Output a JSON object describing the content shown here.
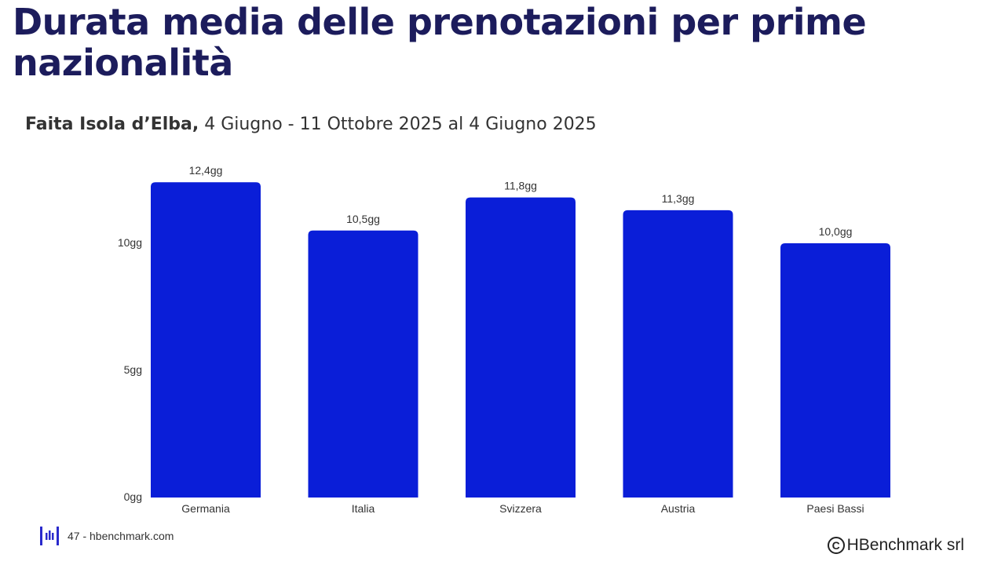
{
  "page": {
    "title": "Durata media delle prenotazioni per prime nazionalità",
    "subtitle_bold": "Faita Isola d’Elba,",
    "subtitle_rest": " 4 Giugno - 11 Ottobre 2025 al 4 Giugno 2025"
  },
  "footer": {
    "page_info": "47 - hbenchmark.com",
    "logo_icon": "hbenchmark-logo-icon",
    "copyright_symbol": "C",
    "copyright_text": "HBenchmark srl"
  },
  "colors": {
    "title": "#1c1c5c",
    "bar": "#0a1ed8",
    "brand": "#2a2acc"
  },
  "chart_data": {
    "type": "bar",
    "categories": [
      "Germania",
      "Italia",
      "Svizzera",
      "Austria",
      "Paesi Bassi"
    ],
    "values": [
      12.4,
      10.5,
      11.8,
      11.3,
      10.0
    ],
    "data_labels": [
      "12,4gg",
      "10,5gg",
      "11,8gg",
      "11,3gg",
      "10,0gg"
    ],
    "yticks": [
      0,
      5,
      10
    ],
    "ytick_labels": [
      "0gg",
      "5gg",
      "10gg"
    ],
    "ylim": [
      0,
      12.4
    ],
    "grid": false,
    "legend": "none",
    "title": "",
    "xlabel": "",
    "ylabel": ""
  }
}
